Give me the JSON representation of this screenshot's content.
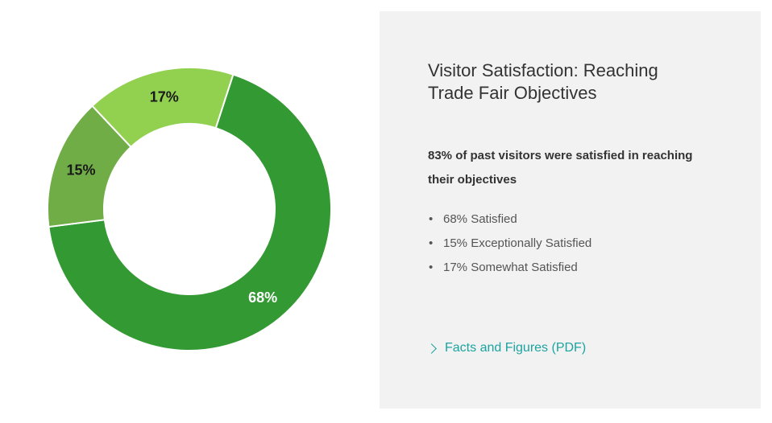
{
  "chart_data": {
    "type": "pie",
    "variant": "donut",
    "title": "",
    "slices": [
      {
        "label": "68%",
        "value": 68,
        "color": "#339933"
      },
      {
        "label": "15%",
        "value": 15,
        "color": "#70ad47"
      },
      {
        "label": "17%",
        "value": 17,
        "color": "#92d050"
      }
    ],
    "start_angle_deg": 18,
    "legend": "none"
  },
  "panel": {
    "title": "Visitor Satisfaction: Reaching Trade Fair Objectives",
    "summary": "83% of past visitors were satisfied in reaching their objectives",
    "stats": [
      "68% Satisfied",
      "15% Exceptionally Satisfied",
      "17% Somewhat Satisfied"
    ],
    "link_label": "Facts and Figures (PDF)",
    "link_icon": "chevron-right-icon"
  },
  "colors": {
    "panel_background": "#f2f2f2",
    "link": "#1ba4a0",
    "label_light": "#ffffff",
    "label_dark": "#1a1a1a"
  }
}
